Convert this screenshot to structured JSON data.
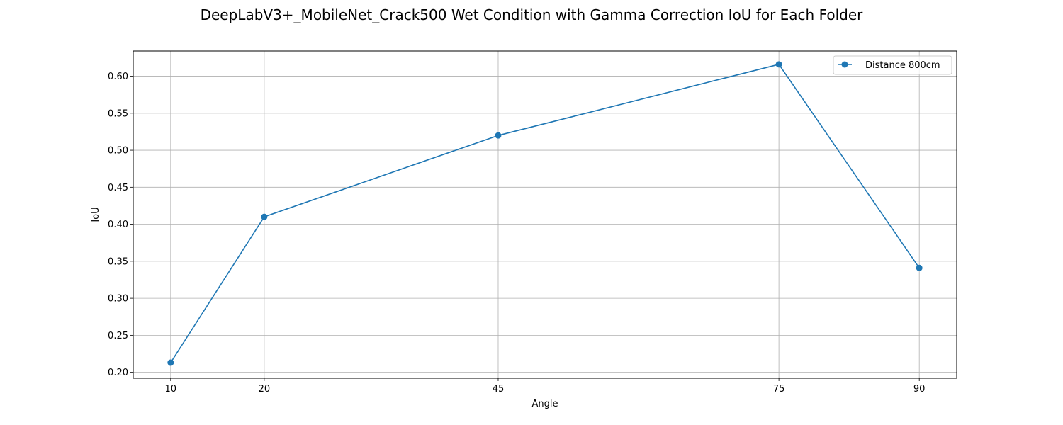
{
  "chart_data": {
    "type": "line",
    "title": "DeepLabV3+_MobileNet_Crack500 Wet Condition with Gamma Correction IoU for Each Folder",
    "xlabel": "Angle",
    "ylabel": "IoU",
    "x": [
      10,
      20,
      45,
      75,
      90
    ],
    "xticks": [
      "10",
      "20",
      "45",
      "75",
      "90"
    ],
    "xlim": [
      6,
      94
    ],
    "ylim": [
      0.192,
      0.634
    ],
    "yticks": [
      "0.20",
      "0.25",
      "0.30",
      "0.35",
      "0.40",
      "0.45",
      "0.50",
      "0.55",
      "0.60"
    ],
    "grid": true,
    "legend_position": "top-right",
    "series": [
      {
        "name": "Distance 800cm",
        "color": "#1f77b4",
        "marker": "circle",
        "values": [
          0.213,
          0.41,
          0.52,
          0.616,
          0.341
        ]
      }
    ]
  }
}
